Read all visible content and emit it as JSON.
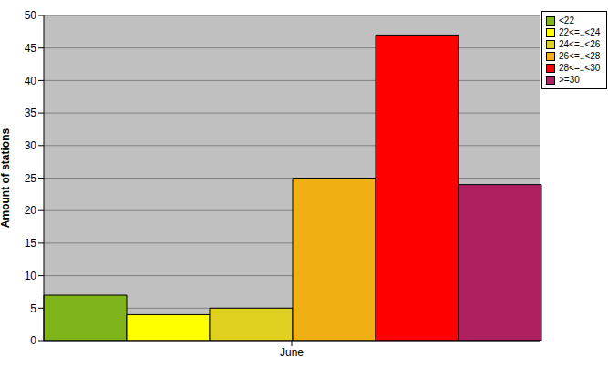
{
  "chart_data": {
    "type": "bar",
    "y_label": "Amount of stations",
    "categories": [
      "June"
    ],
    "series": [
      {
        "name": "<22",
        "color": "#7fb51a",
        "values": [
          7
        ]
      },
      {
        "name": "22<=..<24",
        "color": "#ffff00",
        "values": [
          4
        ]
      },
      {
        "name": "24<=..<26",
        "color": "#e0d020",
        "values": [
          5
        ]
      },
      {
        "name": "26<=..<28",
        "color": "#f0b014",
        "values": [
          25
        ]
      },
      {
        "name": "28<=..<30",
        "color": "#ff0000",
        "values": [
          47
        ]
      },
      {
        "name": ">=30",
        "color": "#ae2060",
        "values": [
          24
        ]
      }
    ],
    "ylim": [
      0,
      50
    ],
    "yticks": [
      0,
      5,
      10,
      15,
      20,
      25,
      30,
      35,
      40,
      45,
      50
    ],
    "grid": true,
    "legend": "top right"
  }
}
